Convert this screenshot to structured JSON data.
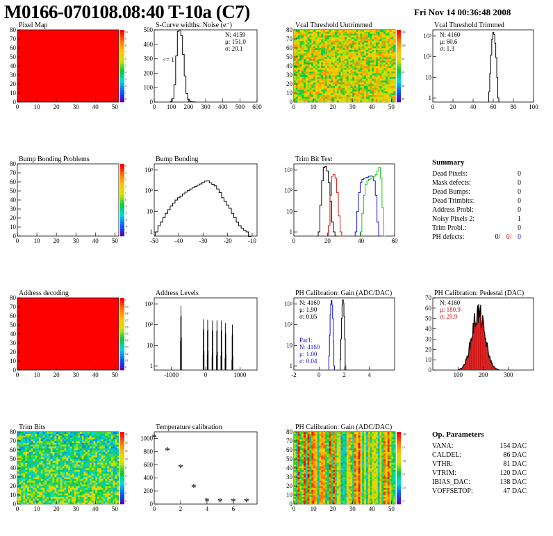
{
  "header": {
    "title": "M0166-070108.08:40 T-10a (C7)",
    "date": "Fri Nov 14 00:36:48 2008"
  },
  "colors": {
    "black": "#000000",
    "red": "#d01010",
    "blue": "#1010d0",
    "green": "#20c020",
    "heat_red": "#ff0000"
  },
  "chart_data": [
    {
      "id": "pixel-map",
      "type": "heatmap",
      "title": "Pixel Map",
      "xlim": [
        0,
        52
      ],
      "ylim": [
        0,
        80
      ],
      "xticks": [
        "0",
        "10",
        "20",
        "30",
        "40",
        "50"
      ],
      "yticks": [
        "0",
        "10",
        "20",
        "30",
        "40",
        "50",
        "60",
        "70",
        "80"
      ],
      "fill": "uniform",
      "fill_color": "#ff0000",
      "fill_value": 10,
      "palette_labels": [
        "10",
        "9",
        "8",
        "7",
        "6",
        "5",
        "4",
        "3",
        "2",
        "1",
        "0"
      ]
    },
    {
      "id": "scurve-noise",
      "type": "histogram",
      "title": "S-Curve widths: Noise (e⁻)",
      "xlim": [
        0,
        600
      ],
      "ylim": [
        0,
        500
      ],
      "xticks": [
        "0",
        "100",
        "200",
        "300",
        "400",
        "500",
        "600"
      ],
      "yticks": [
        "0",
        "100",
        "200",
        "300",
        "400",
        "500"
      ],
      "stats": {
        "n": "N: 4159",
        "mean": "μ: 151.0",
        "sigma": "σ: 20.1"
      },
      "annotation": "<= 1",
      "bins_x": [
        90,
        100,
        110,
        120,
        130,
        140,
        150,
        160,
        170,
        180,
        190,
        200,
        210,
        220,
        230,
        240
      ],
      "counts": [
        0,
        3,
        25,
        120,
        320,
        490,
        510,
        460,
        330,
        180,
        60,
        18,
        6,
        2,
        1,
        0
      ]
    },
    {
      "id": "vcal-untrimmed",
      "type": "heatmap",
      "title": "Vcal Threshold Untrimmed",
      "xlim": [
        0,
        52
      ],
      "ylim": [
        0,
        80
      ],
      "xticks": [
        "0",
        "10",
        "20",
        "30",
        "40",
        "50"
      ],
      "yticks": [
        "0",
        "10",
        "20",
        "30",
        "40",
        "50",
        "60",
        "70",
        "80"
      ],
      "fill": "noise",
      "palette_labels": [
        "120",
        "100",
        "80",
        "60",
        "40",
        "20"
      ]
    },
    {
      "id": "vcal-trimmed",
      "type": "histogram",
      "title": "Vcal Threshold Trimmed",
      "log_y": true,
      "xlim": [
        0,
        100
      ],
      "xticks": [
        "0",
        "20",
        "40",
        "60",
        "80",
        "100"
      ],
      "yticks": [
        "1",
        "10",
        "10²",
        "10³"
      ],
      "stats": {
        "n": "N: 4160",
        "mean": "μ: 60.6",
        "sigma": "σ:  1.3"
      },
      "bins_x": [
        56,
        57,
        58,
        59,
        60,
        61,
        62,
        63,
        64,
        65
      ],
      "counts": [
        2,
        15,
        120,
        700,
        1500,
        1200,
        450,
        90,
        10,
        1
      ]
    },
    {
      "id": "bump-bonding-problems",
      "type": "heatmap",
      "title": "Bump Bonding Problems",
      "xlim": [
        0,
        52
      ],
      "ylim": [
        0,
        80
      ],
      "xticks": [
        "0",
        "10",
        "20",
        "30",
        "40",
        "50"
      ],
      "yticks": [
        "0",
        "10",
        "20",
        "30",
        "40",
        "50",
        "60",
        "70",
        "80"
      ],
      "fill": "empty",
      "palette_labels": [
        "5",
        "4",
        "3",
        "2",
        "1",
        "0",
        "-1",
        "-2",
        "-3",
        "-4",
        "-5"
      ]
    },
    {
      "id": "bump-bonding",
      "type": "histogram",
      "title": "Bump Bonding",
      "log_y": true,
      "xlim": [
        -50,
        -8
      ],
      "xticks": [
        "-50",
        "-40",
        "-30",
        "-20",
        "-10"
      ],
      "yticks": [
        "1",
        "10",
        "10²",
        "10³"
      ],
      "bins_x": [
        -49,
        -48,
        -47,
        -46,
        -45,
        -44,
        -43,
        -42,
        -41,
        -40,
        -39,
        -38,
        -37,
        -36,
        -35,
        -34,
        -33,
        -32,
        -31,
        -30,
        -29,
        -28,
        -27,
        -26,
        -25,
        -24,
        -23,
        -22,
        -21,
        -20,
        -19,
        -18,
        -17,
        -16,
        -15,
        -14,
        -13,
        -12,
        -11
      ],
      "counts": [
        1,
        2,
        3,
        5,
        8,
        12,
        18,
        25,
        35,
        45,
        55,
        70,
        85,
        100,
        120,
        140,
        160,
        185,
        210,
        250,
        290,
        300,
        240,
        200,
        170,
        120,
        80,
        45,
        30,
        20,
        14,
        8,
        5,
        3,
        2,
        1.5,
        1.2,
        1,
        0.6
      ]
    },
    {
      "id": "trim-bit-test",
      "type": "histogram",
      "title": "Trim Bit Test",
      "log_y": true,
      "xlim": [
        0,
        60
      ],
      "xticks": [
        "0",
        "20",
        "40",
        "60"
      ],
      "yticks": [
        "1",
        "10",
        "10²",
        "10³"
      ],
      "series": [
        {
          "color": "#000000",
          "bins_x": [
            15,
            16,
            17,
            18,
            19,
            20,
            21,
            22,
            23,
            24,
            25
          ],
          "counts": [
            1,
            20,
            300,
            1300,
            1500,
            900,
            250,
            30,
            3,
            1,
            0
          ]
        },
        {
          "color": "#d01010",
          "bins_x": [
            21,
            22,
            23,
            24,
            25,
            26,
            27,
            28,
            29,
            30
          ],
          "counts": [
            2,
            60,
            500,
            600,
            400,
            80,
            6,
            1,
            0,
            0
          ]
        },
        {
          "color": "#1010d0",
          "bins_x": [
            37,
            38,
            39,
            40,
            41,
            42,
            43,
            44,
            45,
            46,
            47,
            48,
            49,
            50,
            51
          ],
          "counts": [
            1,
            10,
            80,
            250,
            350,
            400,
            420,
            450,
            500,
            520,
            500,
            300,
            60,
            3,
            0
          ]
        },
        {
          "color": "#20c020",
          "bins_x": [
            40,
            41,
            42,
            43,
            44,
            45,
            46,
            47,
            48,
            49,
            50,
            51,
            52,
            53,
            54
          ],
          "counts": [
            1,
            8,
            60,
            200,
            300,
            350,
            400,
            480,
            500,
            600,
            900,
            1300,
            400,
            15,
            0
          ]
        }
      ]
    },
    {
      "id": "summary",
      "type": "table",
      "title": "Summary",
      "rows": [
        {
          "label": "Dead Pixels:",
          "value": "0"
        },
        {
          "label": "Mask defects:",
          "value": "0"
        },
        {
          "label": "Dead Bumps:",
          "value": "0"
        },
        {
          "label": "Dead Trimbits:",
          "value": "0"
        },
        {
          "label": "Address Probl:",
          "value": "0"
        },
        {
          "label": "Noisy Pixels 2:",
          "value": "1"
        },
        {
          "label": "Trim Probl.:",
          "value": "0"
        }
      ],
      "ph_defects": {
        "label": "PH defects:",
        "v1": "0/",
        "v2": "0/",
        "v3": "0"
      }
    },
    {
      "id": "address-decoding",
      "type": "heatmap",
      "title": "Address decoding",
      "xlim": [
        0,
        52
      ],
      "ylim": [
        0,
        80
      ],
      "xticks": [
        "0",
        "10",
        "20",
        "30",
        "40",
        "50"
      ],
      "yticks": [
        "0",
        "10",
        "20",
        "30",
        "40",
        "50",
        "60",
        "70",
        "80"
      ],
      "fill": "uniform",
      "fill_color": "#ff0000",
      "fill_value": 1,
      "palette_labels": [
        "1",
        "0.9",
        "0.8",
        "0.7",
        "0.6",
        "0.5",
        "0.4",
        "0.3",
        "0.2",
        "0.1",
        "0"
      ]
    },
    {
      "id": "address-levels",
      "type": "histogram",
      "title": "Address Levels",
      "log_y": true,
      "xlim": [
        -1500,
        1500
      ],
      "xticks": [
        "-1000",
        "0",
        "1000"
      ],
      "yticks": [
        "1",
        "10",
        "10²",
        "10³"
      ],
      "peaks": [
        {
          "x": -720,
          "y": 800
        },
        {
          "x": -60,
          "y": 180
        },
        {
          "x": 60,
          "y": 170
        },
        {
          "x": 200,
          "y": 160
        },
        {
          "x": 330,
          "y": 160
        },
        {
          "x": 460,
          "y": 160
        },
        {
          "x": 580,
          "y": 120
        },
        {
          "x": 780,
          "y": 100
        }
      ]
    },
    {
      "id": "ph-gain",
      "type": "histogram",
      "title": "PH Calibration: Gain (ADC/DAC)",
      "log_y": true,
      "xlim": [
        -2,
        6
      ],
      "xticks": [
        "-2",
        "0",
        "2",
        "4"
      ],
      "yticks": [
        "1",
        "10",
        "10²",
        "10³"
      ],
      "stats": {
        "n": "N: 4160",
        "mean": "μ: 1.90",
        "sigma": "σ: 0.05"
      },
      "stats2": {
        "title": "Par1:",
        "n": "N: 4160",
        "mean": "μ: 1.00",
        "sigma": "σ: 0.04"
      },
      "series": [
        {
          "color": "#000000",
          "bins_x": [
            1.7,
            1.75,
            1.8,
            1.85,
            1.9,
            1.95,
            2.0,
            2.05,
            2.1
          ],
          "counts": [
            2,
            20,
            200,
            900,
            1600,
            1100,
            250,
            20,
            1
          ]
        },
        {
          "color": "#1010d0",
          "bins_x": [
            0.8,
            0.85,
            0.9,
            0.95,
            1.0,
            1.05,
            1.1,
            1.15,
            1.2
          ],
          "counts": [
            3,
            30,
            300,
            1000,
            1500,
            900,
            200,
            15,
            1
          ]
        }
      ]
    },
    {
      "id": "ph-pedestal",
      "type": "histogram",
      "title": "PH Calibration: Pedestal (DAC)",
      "xlim": [
        0,
        400
      ],
      "ylim": [
        0,
        70
      ],
      "xticks": [
        "100",
        "200",
        "300"
      ],
      "yticks": [
        "0",
        "10",
        "20",
        "30",
        "40",
        "50",
        "60",
        "70"
      ],
      "stats": {
        "n": "N: 4160",
        "mean": "μ:  180.9",
        "sigma": "σ:  25.9"
      },
      "mean": 180.9,
      "sigma": 25.9,
      "peak": 55
    },
    {
      "id": "trim-bits",
      "type": "heatmap",
      "title": "Trim Bits",
      "xlim": [
        0,
        52
      ],
      "ylim": [
        0,
        80
      ],
      "xticks": [
        "0",
        "10",
        "20",
        "30",
        "40",
        "50"
      ],
      "yticks": [
        "0",
        "10",
        "20",
        "30",
        "40",
        "50",
        "60",
        "70",
        "80"
      ],
      "fill": "noise-cold",
      "palette_labels": [
        "16",
        "14",
        "12",
        "10",
        "8",
        "6",
        "4",
        "2",
        "0"
      ]
    },
    {
      "id": "temperature-calibration",
      "type": "scatter",
      "title": "Temperature calibration",
      "xlim": [
        0,
        7.8
      ],
      "ylim": [
        0,
        1100
      ],
      "xticks": [
        "0",
        "2",
        "4",
        "6"
      ],
      "yticks": [
        "0",
        "200",
        "400",
        "600",
        "800",
        "1000"
      ],
      "x": [
        0,
        1,
        2,
        3,
        4,
        5,
        6,
        7
      ],
      "y": [
        1030,
        830,
        570,
        270,
        60,
        55,
        55,
        55
      ]
    },
    {
      "id": "ph-gain-map",
      "type": "heatmap",
      "title": "PH Calibration: Gain (ADC/DAC)",
      "xlim": [
        0,
        52
      ],
      "ylim": [
        0,
        80
      ],
      "xticks": [
        "0",
        "10",
        "20",
        "30",
        "40",
        "50"
      ],
      "yticks": [
        "0",
        "10",
        "20",
        "30",
        "40",
        "50",
        "60",
        "70",
        "80"
      ],
      "fill": "stripes",
      "palette_labels": [
        "1.95",
        "1.9",
        "1.85",
        "1.8",
        "1.75",
        "1.7"
      ]
    },
    {
      "id": "op-parameters",
      "type": "table",
      "title": "Op. Parameters",
      "rows": [
        {
          "label": "VANA:",
          "value": "154 DAC"
        },
        {
          "label": "CALDEL:",
          "value": "86 DAC"
        },
        {
          "label": "VTHR:",
          "value": "81 DAC"
        },
        {
          "label": "VTRIM:",
          "value": "120 DAC"
        },
        {
          "label": "IBIAS_DAC:",
          "value": "138 DAC"
        },
        {
          "label": "VOFFSETOP:",
          "value": "47 DAC"
        }
      ]
    }
  ]
}
